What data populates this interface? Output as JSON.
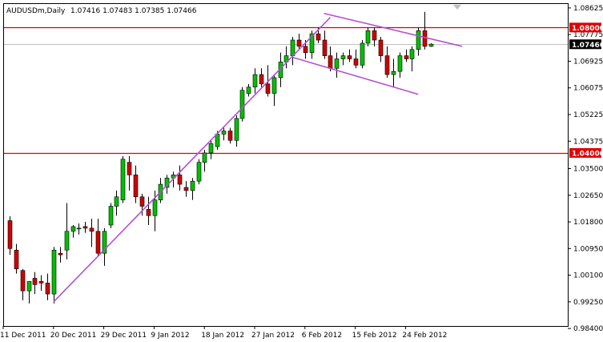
{
  "header": {
    "symbol": "AUDUSDm,Daily",
    "ohlc": "1.07416 1.07483 1.07385 1.07466"
  },
  "colors": {
    "bull": "#00c000",
    "bear": "#d00000",
    "level": "#e00000",
    "trend": "#b54fd0",
    "current": "#c0c0c0",
    "tag_current": "#000000"
  },
  "chart_data": {
    "type": "candlestick",
    "ylim": [
      0.9848,
      1.0875
    ],
    "y_ticks": [
      "1.08625",
      "1.07775",
      "1.06925",
      "1.06075",
      "1.05225",
      "1.04375",
      "1.03500",
      "1.02650",
      "1.01800",
      "1.00950",
      "1.00100",
      "0.99250",
      "0.98400"
    ],
    "x_labels": [
      "11 Dec 2011",
      "20 Dec 2011",
      "29 Dec 2011",
      "9 Jan 2012",
      "18 Jan 2012",
      "27 Jan 2012",
      "6 Feb 2012",
      "15 Feb 2012",
      "24 Feb 2012"
    ],
    "x_label_index": [
      0,
      8,
      16,
      24,
      32,
      40,
      48,
      56,
      64
    ],
    "candles": [
      [
        1.0184,
        1.0198,
        1.0075,
        1.0095
      ],
      [
        1.009,
        1.011,
        1.0015,
        1.003
      ],
      [
        1.0025,
        1.003,
        0.993,
        0.996
      ],
      [
        0.996,
        0.999,
        0.992,
        0.999
      ],
      [
        1.0,
        1.002,
        0.995,
        0.998
      ],
      [
        0.999,
        1.001,
        0.996,
        0.9985
      ],
      [
        0.9985,
        1.0015,
        0.993,
        0.995
      ],
      [
        0.995,
        1.01,
        0.992,
        1.009
      ],
      [
        1.008,
        1.01,
        1.005,
        1.0075
      ],
      [
        1.009,
        1.024,
        1.006,
        1.015
      ],
      [
        1.015,
        1.017,
        1.013,
        1.0165
      ],
      [
        1.016,
        1.0175,
        1.014,
        1.016
      ],
      [
        1.0165,
        1.018,
        1.0145,
        1.016
      ],
      [
        1.016,
        1.019,
        1.01,
        1.015
      ],
      [
        1.015,
        1.019,
        1.007,
        1.008
      ],
      [
        1.008,
        1.016,
        1.004,
        1.015
      ],
      [
        1.017,
        1.024,
        1.016,
        1.023
      ],
      [
        1.023,
        1.028,
        1.02,
        1.026
      ],
      [
        1.025,
        1.039,
        1.024,
        1.038
      ],
      [
        1.037,
        1.039,
        1.028,
        1.033
      ],
      [
        1.033,
        1.036,
        1.024,
        1.026
      ],
      [
        1.026,
        1.027,
        1.02,
        1.023
      ],
      [
        1.022,
        1.026,
        1.017,
        1.02
      ],
      [
        1.02,
        1.028,
        1.015,
        1.025
      ],
      [
        1.025,
        1.032,
        1.024,
        1.03
      ],
      [
        1.029,
        1.033,
        1.027,
        1.032
      ],
      [
        1.032,
        1.034,
        1.029,
        1.033
      ],
      [
        1.033,
        1.036,
        1.028,
        1.03
      ],
      [
        1.029,
        1.031,
        1.026,
        1.028
      ],
      [
        1.028,
        1.032,
        1.025,
        1.031
      ],
      [
        1.031,
        1.038,
        1.03,
        1.037
      ],
      [
        1.037,
        1.041,
        1.034,
        1.04
      ],
      [
        1.04,
        1.044,
        1.038,
        1.043
      ],
      [
        1.042,
        1.047,
        1.041,
        1.046
      ],
      [
        1.046,
        1.048,
        1.044,
        1.047
      ],
      [
        1.047,
        1.048,
        1.043,
        1.044
      ],
      [
        1.044,
        1.052,
        1.042,
        1.051
      ],
      [
        1.051,
        1.061,
        1.05,
        1.06
      ],
      [
        1.059,
        1.062,
        1.058,
        1.061
      ],
      [
        1.061,
        1.067,
        1.059,
        1.065
      ],
      [
        1.065,
        1.067,
        1.061,
        1.062
      ],
      [
        1.062,
        1.068,
        1.058,
        1.059
      ],
      [
        1.059,
        1.065,
        1.055,
        1.064
      ],
      [
        1.064,
        1.072,
        1.061,
        1.069
      ],
      [
        1.069,
        1.074,
        1.067,
        1.071
      ],
      [
        1.071,
        1.077,
        1.068,
        1.076
      ],
      [
        1.076,
        1.078,
        1.073,
        1.074
      ],
      [
        1.074,
        1.076,
        1.07,
        1.072
      ],
      [
        1.072,
        1.079,
        1.07,
        1.078
      ],
      [
        1.078,
        1.08,
        1.075,
        1.076
      ],
      [
        1.076,
        1.079,
        1.07,
        1.071
      ],
      [
        1.071,
        1.074,
        1.066,
        1.067
      ],
      [
        1.067,
        1.072,
        1.064,
        1.07
      ],
      [
        1.07,
        1.072,
        1.068,
        1.071
      ],
      [
        1.071,
        1.073,
        1.069,
        1.07
      ],
      [
        1.07,
        1.073,
        1.067,
        1.068
      ],
      [
        1.068,
        1.076,
        1.067,
        1.075
      ],
      [
        1.075,
        1.08,
        1.074,
        1.079
      ],
      [
        1.079,
        1.08,
        1.074,
        1.076
      ],
      [
        1.076,
        1.077,
        1.069,
        1.071
      ],
      [
        1.071,
        1.074,
        1.064,
        1.065
      ],
      [
        1.065,
        1.07,
        1.061,
        1.066
      ],
      [
        1.066,
        1.072,
        1.064,
        1.071
      ],
      [
        1.071,
        1.073,
        1.069,
        1.07
      ],
      [
        1.07,
        1.074,
        1.066,
        1.073
      ],
      [
        1.073,
        1.08,
        1.071,
        1.079
      ],
      [
        1.079,
        1.085,
        1.073,
        1.074
      ],
      [
        1.074,
        1.075,
        1.0738,
        1.0747
      ]
    ],
    "levels": [
      {
        "value": 1.08,
        "label": "1.08000"
      },
      {
        "value": 1.04,
        "label": "1.04000"
      }
    ],
    "current": {
      "value": 1.07466,
      "label": "1.07466"
    },
    "trendlines": [
      [
        [
          7,
          0.9925
        ],
        [
          51,
          1.0832
        ]
      ],
      [
        [
          50,
          1.0845
        ],
        [
          72,
          1.074
        ]
      ],
      [
        [
          45,
          1.0705
        ],
        [
          65,
          1.0587
        ]
      ]
    ]
  }
}
